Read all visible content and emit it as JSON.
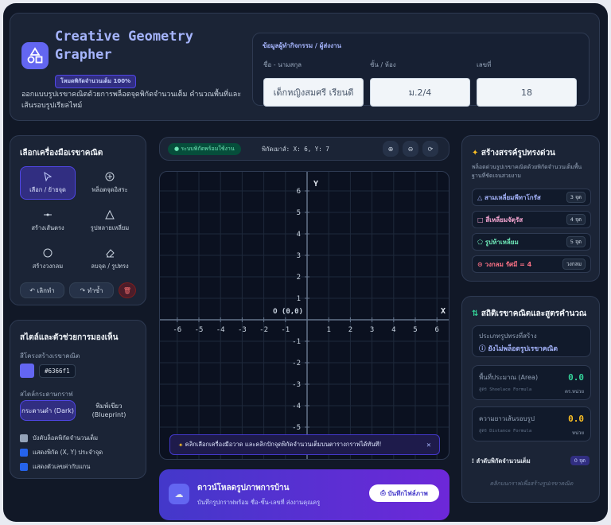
{
  "header": {
    "title": "Creative Geometry Grapher",
    "badge": "โหมดพิกัดจำนวนเต็ม 100%",
    "description": "ออกแบบรูปเรขาคณิตด้วยการพล็อตจุดพิกัดจำนวนเต็ม คำนวณพื้นที่และเส้นรอบรูปเรียลไทม์"
  },
  "student": {
    "title": "ข้อมูลผู้ทำกิจกรรม / ผู้ส่งงาน",
    "fields": [
      {
        "label": "ชื่อ - นามสกุล",
        "value": "เด็กหญิงสมศรี เรียนดี"
      },
      {
        "label": "ชั้น / ห้อง",
        "value": "ม.2/4"
      },
      {
        "label": "เลขที่",
        "value": "18"
      }
    ]
  },
  "tools": {
    "title": "เลือกเครื่องมือเรขาคณิต",
    "items": [
      "เลือก / ย้ายจุด",
      "พล็อตจุดอิสระ",
      "สร้างเส้นตรง",
      "รูปหลายเหลี่ยม",
      "สร้างวงกลม",
      "ลบจุด / รูปทรง"
    ],
    "undo": "เลิกทำ",
    "redo": "ทำซ้ำ"
  },
  "style": {
    "title": "สไตล์และตัวช่วยการมองเห็น",
    "color_label": "สีโครงสร้างเรขาคณิต",
    "color_value": "#6366f1",
    "paper_label": "สไตล์กระดาษกราฟ",
    "paper_options": [
      "กระดานดำ (Dark)",
      "พิมพ์เขียว (Blueprint)"
    ],
    "checkboxes": [
      "บังคับล็อคพิกัดจำนวนเต็ม",
      "แสดงพิกัด (X, Y) ประจำจุด",
      "แสดงตัวเลขค่ากับแกน"
    ]
  },
  "toolbar": {
    "status": "ระบบพิกัดพร้อมใช้งาน",
    "mouse": "พิกัดเมาส์: X: 6, Y: 7"
  },
  "graph": {
    "x_label": "X",
    "y_label": "Y",
    "origin_label": "O (0,0)",
    "xticks": [
      -6,
      -5,
      -4,
      -3,
      -2,
      -1,
      1,
      2,
      3,
      4,
      5,
      6
    ],
    "yticks": [
      6,
      5,
      4,
      3,
      2,
      1,
      -1,
      -2,
      -3,
      -4,
      -5
    ],
    "toast": "คลิกเลือกเครื่องมือวาด และคลิกปักจุดพิกัดจำนวนเต็มบนตารางกราฟได้ทันที!"
  },
  "download": {
    "title": "ดาวน์โหลดรูปภาพการบ้าน",
    "subtitle": "บันทึกรูปกราฟพร้อม ชื่อ-ชั้น-เลขที่ ส่งงานคุณครู",
    "button": "บันทึกไฟล์ภาพ"
  },
  "templates": {
    "title": "สร้างสรรค์รูปทรงด่วน",
    "description": "พล็อตด่วนรูปเรขาคณิตด้วยพิกัดจำนวนเต็มพื้นฐานที่ชัดเจนสวยงาม",
    "items": [
      {
        "name": "สามเหลี่ยมพีทาโกรัส",
        "tag": "3 จุด"
      },
      {
        "name": "สี่เหลี่ยมจัตุรัส",
        "tag": "4 จุด"
      },
      {
        "name": "รูปห้าเหลี่ยม",
        "tag": "5 จุด"
      },
      {
        "name": "วงกลม รัศมี = 4",
        "tag": "วงกลม"
      }
    ]
  },
  "stats": {
    "title": "สถิติเรขาคณิตและสูตรคำนวณ",
    "shape_label": "ประเภทรูปทรงที่สร้าง",
    "shape_value": "ยังไม่พล็อตรูปเรขาคณิต",
    "area_label": "พื้นที่ประมาณ (Area)",
    "area_formula": "สูตร Shoelace Formula",
    "area_value": "0.0",
    "area_unit": "ตร.หน่วย",
    "perimeter_label": "ความยาวเส้นรอบรูป",
    "perimeter_formula": "สูตร Distance Formula",
    "perimeter_value": "0.0",
    "perimeter_unit": "หน่วย",
    "points_label": "ลำดับพิกัดจำนวนเต็ม",
    "points_count": "0 จุด",
    "empty_hint": "คลิกบนกราฟเพื่อสร้างรูปเรขาคณิต"
  }
}
